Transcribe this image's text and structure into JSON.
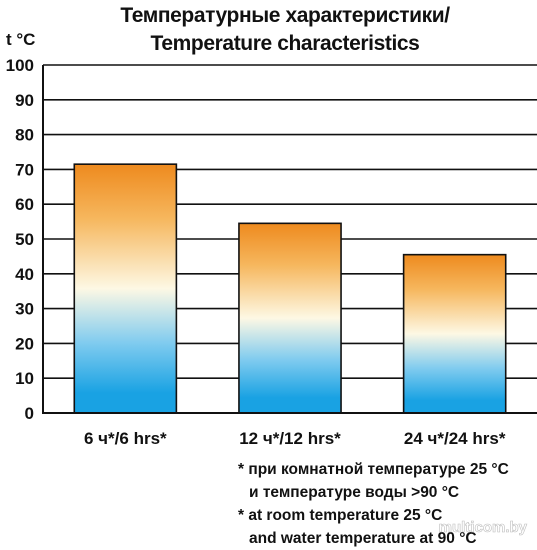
{
  "chart_data": {
    "type": "bar",
    "title": "Температурные характеристики/",
    "subtitle": "Temperature characteristics",
    "ylabel": "t °C",
    "xlabel": "",
    "ylim": [
      0,
      100
    ],
    "yticks": [
      "0",
      "10",
      "20",
      "30",
      "40",
      "50",
      "60",
      "70",
      "80",
      "90",
      "100"
    ],
    "grid": true,
    "categories": [
      "6 ч*/6 hrs*",
      "12 ч*/12 hrs*",
      "24 ч*/24 hrs*"
    ],
    "values": [
      71.5,
      54.5,
      45.5
    ],
    "bar_gradient": {
      "top": "#ee8a1e",
      "middle": "#fdf8e4",
      "bottom": "#19a2e3"
    },
    "footnotes": [
      "* при комнатной температуре 25 °C",
      "и температуре воды >90 °C",
      "* at room temperature 25 °C",
      "and water temperature at 90 °C"
    ]
  },
  "watermark": "multicom.by"
}
